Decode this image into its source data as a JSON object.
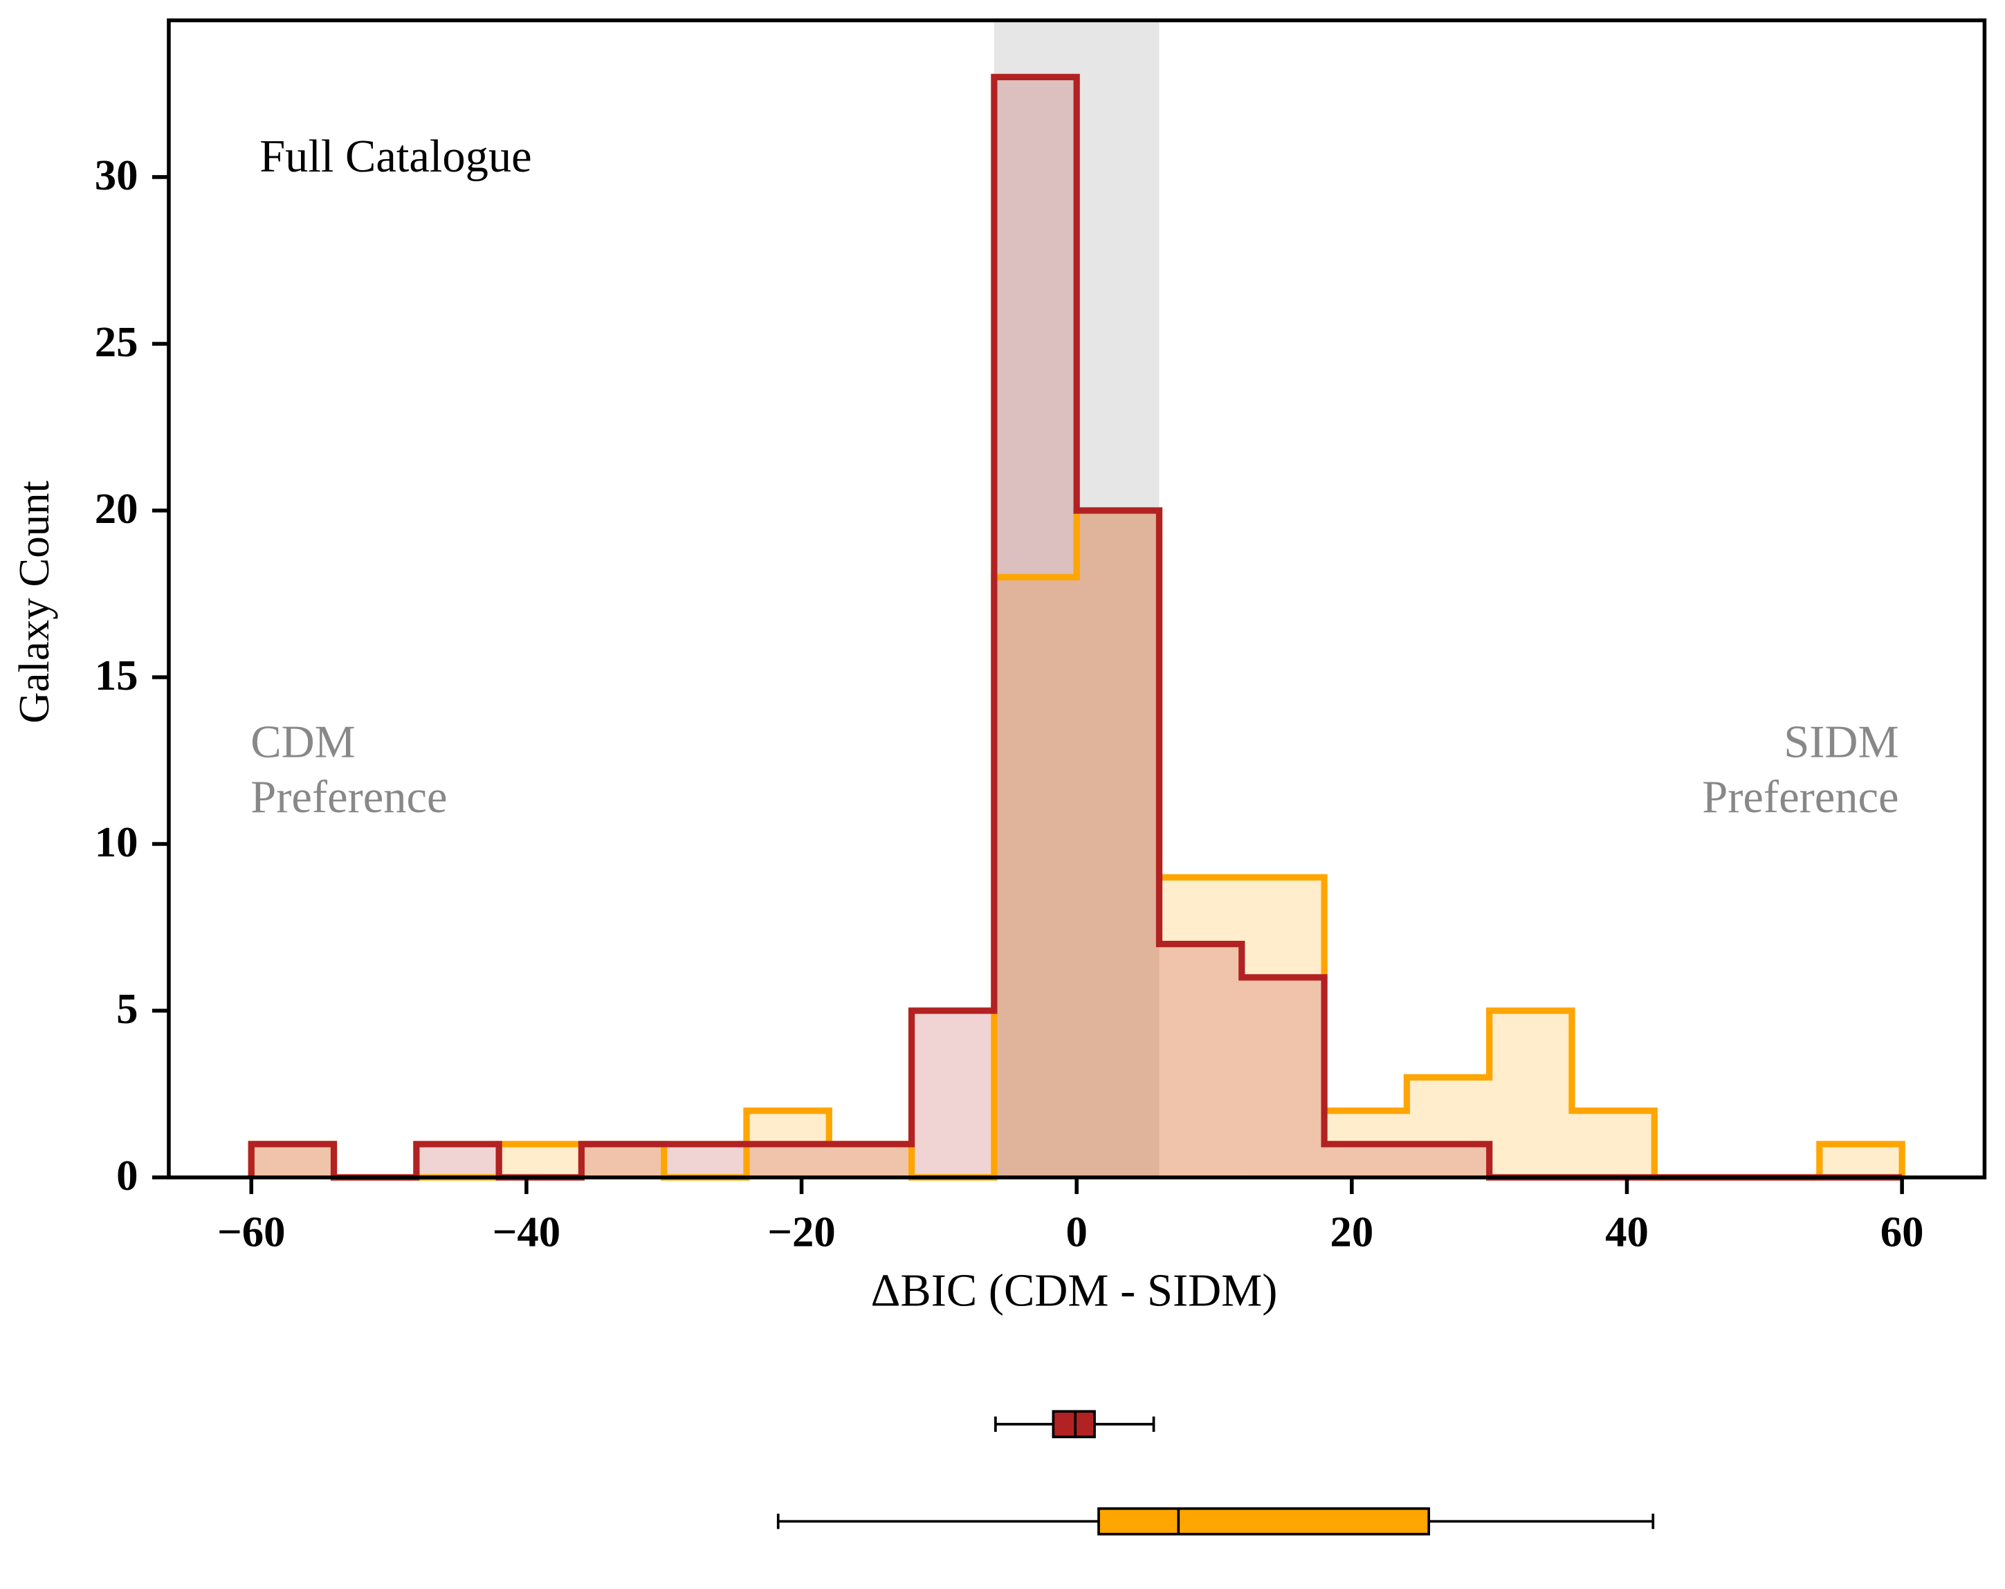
{
  "chart_data": {
    "type": "histogram",
    "bins": [
      -60,
      -54,
      -48,
      -42,
      -36,
      -30,
      -24,
      -18,
      -12,
      -6,
      0,
      6,
      12,
      18,
      24,
      30,
      36,
      42,
      48,
      54,
      60
    ],
    "series": [
      {
        "color": "#ffa500",
        "values": [
          1,
          0,
          0,
          1,
          1,
          0,
          2,
          1,
          0,
          18,
          20,
          9,
          9,
          2,
          3,
          5,
          2,
          0,
          0,
          1
        ]
      },
      {
        "color": "#b22222",
        "values": [
          1,
          0,
          1,
          0,
          1,
          1,
          1,
          1,
          5,
          33,
          20,
          7,
          6,
          1,
          1,
          0,
          0,
          0,
          0,
          0
        ]
      }
    ],
    "shaded_span": [
      -6,
      6
    ],
    "xlabel": "ΔBIC (CDM - SIDM)",
    "ylabel": "Galaxy Count",
    "annotations": [
      {
        "lines": [
          "Full Catalogue"
        ],
        "position": "top-left"
      },
      {
        "lines": [
          "CDM",
          "Preference"
        ],
        "position": "left"
      },
      {
        "lines": [
          "SIDM",
          "Preference"
        ],
        "position": "right"
      }
    ],
    "xlim": [
      -66,
      66
    ],
    "ylim": [
      0,
      34.7
    ],
    "xticks": [
      {
        "value": -60,
        "label": "−60"
      },
      {
        "value": -40,
        "label": "−40"
      },
      {
        "value": -20,
        "label": "−20"
      },
      0,
      20,
      40,
      60
    ],
    "yticks": [
      0,
      5,
      10,
      15,
      20,
      25,
      30
    ],
    "boxplots": [
      {
        "color": "#b22222",
        "whislo": -5.9,
        "q1": -1.7,
        "med": -0.1,
        "q3": 1.3,
        "whishi": 5.6
      },
      {
        "color": "#ffa500",
        "whislo": -21.7,
        "q1": 1.6,
        "med": 7.4,
        "q3": 25.6,
        "whishi": 41.9
      }
    ]
  }
}
